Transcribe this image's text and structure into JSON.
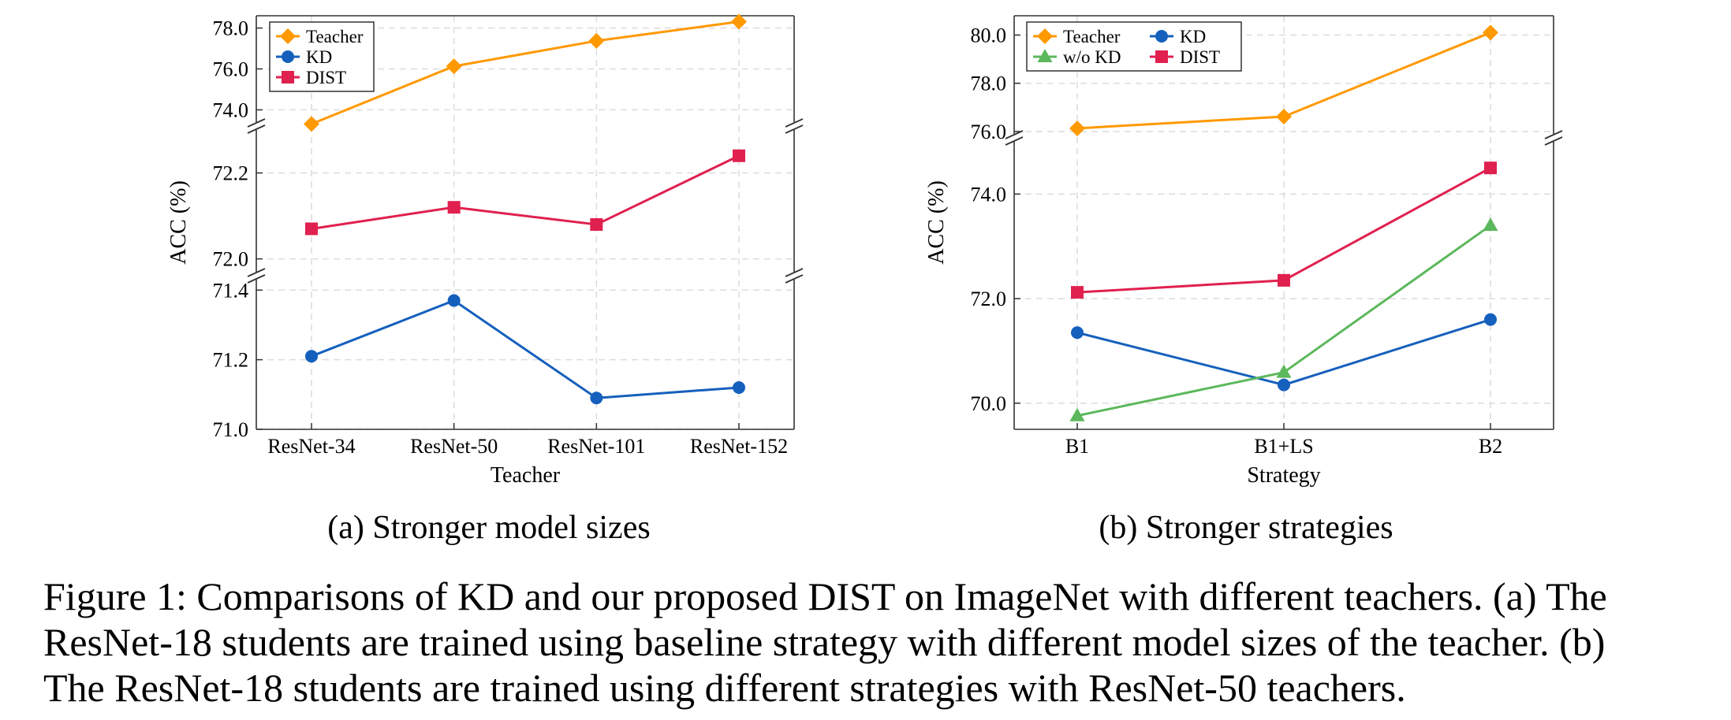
{
  "figure": {
    "caption_lines": [
      "Figure 1: Comparisons of KD and our proposed DIST on ImageNet with different teachers. (a) The",
      "ResNet-18 students are trained using baseline strategy with different model sizes of the teacher. (b)",
      "The ResNet-18 students are trained using different strategies with ResNet-50 teachers."
    ]
  },
  "colors": {
    "teacher": "#ff9900",
    "kd": "#1560bd",
    "dist": "#e0204f",
    "wo_kd": "#5cb85c"
  },
  "chart_data": [
    {
      "type": "line",
      "subcaption": "(a)  Stronger model sizes",
      "xlabel": "Teacher",
      "ylabel": "ACC (%)",
      "categories": [
        "ResNet-34",
        "ResNet-50",
        "ResNet-101",
        "ResNet-152"
      ],
      "broken_y_axis": true,
      "grid": true,
      "legend_position": "top-left",
      "segments": [
        {
          "ylim": [
            73.4,
            78.6
          ],
          "ticks": [
            "74.0",
            "76.0",
            "78.0"
          ]
        },
        {
          "ylim": [
            71.97,
            72.3
          ],
          "ticks": [
            "72.0",
            "72.2"
          ]
        },
        {
          "ylim": [
            71.0,
            71.43
          ],
          "ticks": [
            "71.0",
            "71.2",
            "71.4"
          ]
        }
      ],
      "series": [
        {
          "name": "Teacher",
          "marker": "diamond",
          "color": "#ff9900",
          "values": [
            73.31,
            76.13,
            77.37,
            78.31
          ]
        },
        {
          "name": "KD",
          "marker": "circle",
          "color": "#1560bd",
          "values": [
            71.21,
            71.37,
            71.09,
            71.12
          ]
        },
        {
          "name": "DIST",
          "marker": "square",
          "color": "#e0204f",
          "values": [
            72.07,
            72.12,
            72.08,
            72.24
          ]
        }
      ]
    },
    {
      "type": "line",
      "subcaption": "(b)  Stronger strategies",
      "xlabel": "Strategy",
      "ylabel": "ACC (%)",
      "categories": [
        "B1",
        "B1+LS",
        "B2"
      ],
      "broken_y_axis": true,
      "grid": true,
      "legend_position": "top-left",
      "segments": [
        {
          "ylim": [
            75.9,
            80.8
          ],
          "ticks": [
            "76.0",
            "78.0",
            "80.0"
          ]
        },
        {
          "ylim": [
            69.5,
            75.0
          ],
          "ticks": [
            "70.0",
            "72.0",
            "74.0"
          ]
        }
      ],
      "series": [
        {
          "name": "Teacher",
          "marker": "diamond",
          "color": "#ff9900",
          "values": [
            76.13,
            76.62,
            80.1
          ]
        },
        {
          "name": "KD",
          "marker": "circle",
          "color": "#1560bd",
          "values": [
            71.35,
            70.35,
            71.6
          ]
        },
        {
          "name": "w/o KD",
          "marker": "triangle",
          "color": "#5cb85c",
          "values": [
            69.76,
            70.59,
            73.4
          ]
        },
        {
          "name": "DIST",
          "marker": "square",
          "color": "#e0204f",
          "values": [
            72.12,
            72.35,
            74.5
          ]
        }
      ]
    }
  ]
}
